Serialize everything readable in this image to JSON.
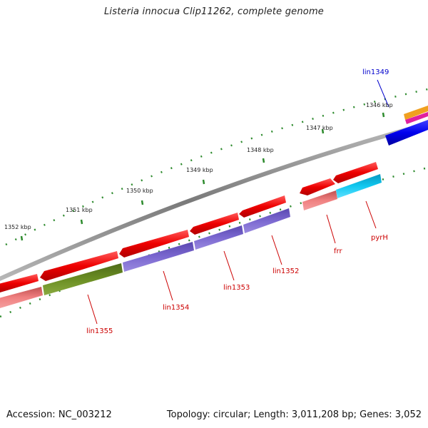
{
  "title": "Listeria innocua Clip11262, complete genome",
  "accession_text": "Accession: NC_003212",
  "topology_text": "Topology: circular; Length: 3,011,208 bp; Genes: 3,052",
  "colors": {
    "backbone": "#8a8a8a",
    "tick": "#2e8b2e",
    "cds": "#ee0000",
    "cog_pink": "#f08080",
    "cog_purple": "#7b68d0",
    "cog_olive": "#6b8e23",
    "cog_cyan": "#10c8f0",
    "cog_blue": "#0000ee",
    "cog_orange": "#f0a020",
    "cog_magenta": "#e020a0",
    "label_red": "#cc0000",
    "label_blue": "#0000cc"
  },
  "ruler_labels": [
    "1346 kbp",
    "1347 kbp",
    "1348 kbp",
    "1349 kbp",
    "1350 kbp",
    "1351 kbp",
    "1352 kbp"
  ],
  "gene_labels": [
    {
      "name": "lin1349",
      "color": "blue"
    },
    {
      "name": "pyrH",
      "color": "red"
    },
    {
      "name": "frr",
      "color": "red"
    },
    {
      "name": "lin1352",
      "color": "red"
    },
    {
      "name": "lin1353",
      "color": "red"
    },
    {
      "name": "lin1354",
      "color": "red"
    },
    {
      "name": "lin1355",
      "color": "red"
    }
  ]
}
